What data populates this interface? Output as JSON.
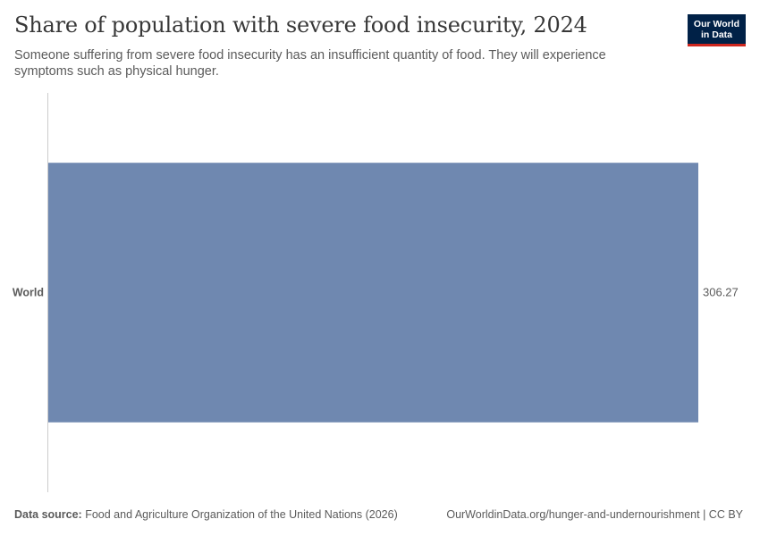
{
  "header": {
    "title": "Share of population with severe food insecurity, 2024",
    "subtitle": "Someone suffering from severe food insecurity has an insufficient quantity of food. They will experience symptoms such as physical hunger."
  },
  "logo": {
    "line1": "Our World",
    "line2": "in Data"
  },
  "footer": {
    "source_label": "Data source:",
    "source_text": "Food and Agriculture Organization of the United Nations (2026)",
    "url_text": "OurWorldinData.org/hunger-and-undernourishment | CC BY"
  },
  "colors": {
    "bar": "#6f88b0",
    "axis": "#cccccc",
    "logo_bg": "#002147",
    "logo_accent": "#ce261e"
  },
  "chart_data": {
    "type": "bar",
    "orientation": "horizontal",
    "categories": [
      "World"
    ],
    "values": [
      306.27
    ],
    "value_labels": [
      "306.27"
    ],
    "xlim": [
      0,
      306.27
    ],
    "grid": false
  }
}
